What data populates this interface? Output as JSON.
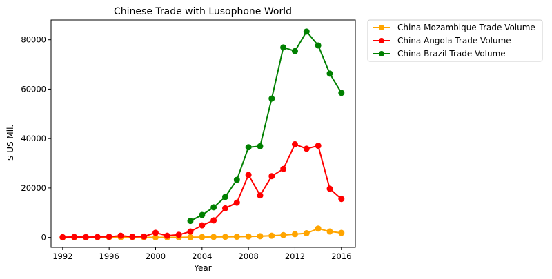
{
  "chart_data": {
    "type": "line",
    "title": "Chinese Trade with Lusophone World",
    "xlabel": "Year",
    "ylabel": "$ US Mil.",
    "xlim": [
      1991,
      2017.2
    ],
    "ylim": [
      -4000,
      88000
    ],
    "xticks": [
      1992,
      1996,
      2000,
      2004,
      2008,
      2012,
      2016
    ],
    "yticks": [
      0,
      20000,
      40000,
      60000,
      80000
    ],
    "grid": false,
    "legend_position": "outside-top-right",
    "series": [
      {
        "name": "China Mozambique Trade Volume",
        "color": "#ffa500",
        "x": [
          1992,
          1993,
          1994,
          1995,
          1996,
          1997,
          1998,
          1999,
          2000,
          2001,
          2002,
          2003,
          2004,
          2005,
          2006,
          2007,
          2008,
          2009,
          2010,
          2011,
          2012,
          2013,
          2014,
          2015,
          2016
        ],
        "y": [
          20,
          30,
          40,
          50,
          80,
          100,
          120,
          60,
          50,
          40,
          60,
          100,
          150,
          200,
          250,
          300,
          400,
          500,
          700,
          950,
          1340,
          1700,
          3600,
          2400,
          1850
        ]
      },
      {
        "name": "China Angola Trade Volume",
        "color": "#ff0000",
        "x": [
          1992,
          1993,
          1994,
          1995,
          1996,
          1997,
          1998,
          1999,
          2000,
          2001,
          2002,
          2003,
          2004,
          2005,
          2006,
          2007,
          2008,
          2009,
          2010,
          2011,
          2012,
          2013,
          2014,
          2015,
          2016
        ],
        "y": [
          100,
          200,
          150,
          200,
          300,
          700,
          300,
          400,
          1900,
          700,
          1100,
          2400,
          4900,
          6900,
          11800,
          14100,
          25300,
          17000,
          24800,
          27700,
          37700,
          35900,
          37100,
          19700,
          15600
        ]
      },
      {
        "name": "China Brazil Trade Volume",
        "color": "#008000",
        "x": [
          2003,
          2004,
          2005,
          2006,
          2007,
          2008,
          2009,
          2010,
          2011,
          2012,
          2013,
          2014,
          2015,
          2016
        ],
        "y": [
          6700,
          9100,
          12200,
          16400,
          23300,
          36500,
          36900,
          56200,
          76900,
          75400,
          83300,
          77700,
          66300,
          58500
        ]
      }
    ]
  }
}
